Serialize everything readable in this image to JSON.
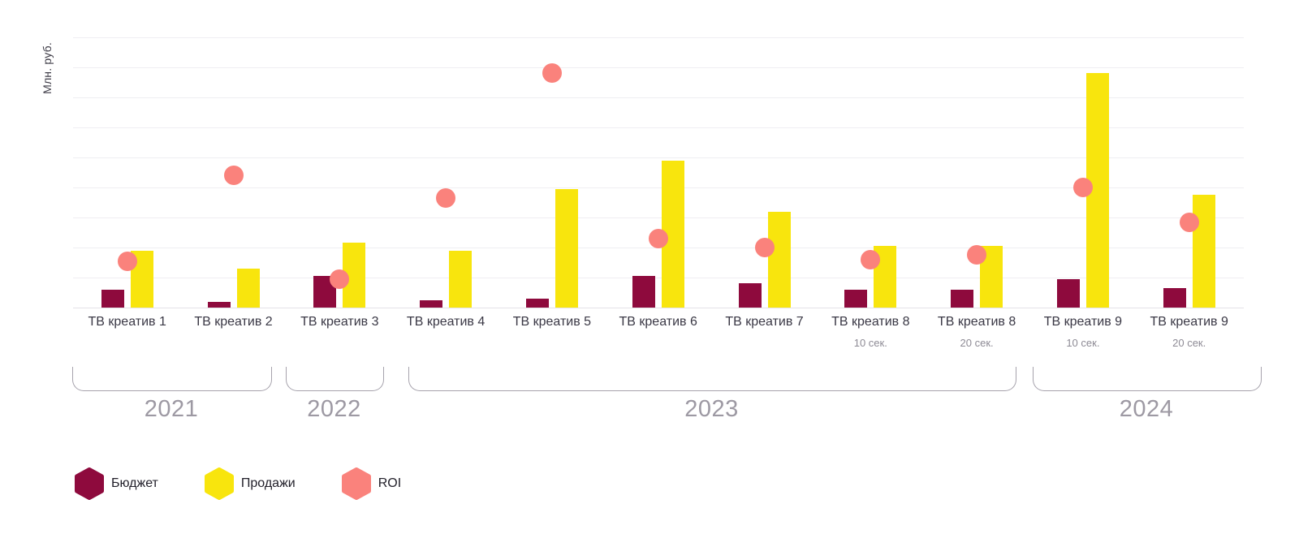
{
  "y_axis_label": "Млн. руб.",
  "colors": {
    "budget": "#8e0a3d",
    "sales": "#f8e50d",
    "roi": "#fa827c",
    "gridline": "#efeef2",
    "category_label": "#3a3845",
    "sublabel": "#8e8b95",
    "year_label": "#9d99a3",
    "legend_label": "#22202a"
  },
  "legend": [
    {
      "id": "budget",
      "label": "Бюджет",
      "marker": "hexagon-icon",
      "color": "#8e0a3d"
    },
    {
      "id": "sales",
      "label": "Продажи",
      "marker": "hexagon-icon",
      "color": "#f8e50d"
    },
    {
      "id": "roi",
      "label": "ROI",
      "marker": "hexagon-icon",
      "color": "#fa827c"
    }
  ],
  "chart_data": {
    "type": "bar",
    "subtype": "grouped bars (Бюджет, Продажи) + scatter markers (ROI)",
    "title": "",
    "ylabel": "Млн. руб.",
    "note": "y-axis shows no numeric tick labels; values are estimated in gridline units (1 unit = one horizontal gridline interval)",
    "ylim": [
      0,
      9
    ],
    "grid_interval": 1,
    "grid_on": true,
    "legend_position": "bottom-left",
    "categories": [
      "ТВ креатив 1",
      "ТВ креатив 2",
      "ТВ креатив 3",
      "ТВ креатив 4",
      "ТВ креатив 5",
      "ТВ креатив 6",
      "ТВ креатив 7",
      "ТВ креатив 8",
      "ТВ креатив 8",
      "ТВ креатив 9",
      "ТВ креатив 9"
    ],
    "groups": [
      {
        "label": "ТВ креатив 1",
        "sublabel": "",
        "year": "2021",
        "budget": 0.6,
        "sales": 1.9,
        "roi": 1.55
      },
      {
        "label": "ТВ креатив 2",
        "sublabel": "",
        "year": "2021",
        "budget": 0.2,
        "sales": 1.3,
        "roi": 4.4
      },
      {
        "label": "ТВ креатив 3",
        "sublabel": "",
        "year": "2022",
        "budget": 1.05,
        "sales": 2.15,
        "roi": 0.95
      },
      {
        "label": "ТВ креатив 4",
        "sublabel": "",
        "year": "2023",
        "budget": 0.25,
        "sales": 1.9,
        "roi": 3.65
      },
      {
        "label": "ТВ креатив 5",
        "sublabel": "",
        "year": "2023",
        "budget": 0.3,
        "sales": 3.95,
        "roi": 7.8
      },
      {
        "label": "ТВ креатив 6",
        "sublabel": "",
        "year": "2023",
        "budget": 1.05,
        "sales": 4.9,
        "roi": 2.3
      },
      {
        "label": "ТВ креатив 7",
        "sublabel": "",
        "year": "2023",
        "budget": 0.8,
        "sales": 3.2,
        "roi": 2.0
      },
      {
        "label": "ТВ креатив 8",
        "sublabel": "10 сек.",
        "year": "2023",
        "budget": 0.6,
        "sales": 2.05,
        "roi": 1.6
      },
      {
        "label": "ТВ креатив 8",
        "sublabel": "20 сек.",
        "year": "2023",
        "budget": 0.6,
        "sales": 2.05,
        "roi": 1.75
      },
      {
        "label": "ТВ креатив 9",
        "sublabel": "10 сек.",
        "year": "2024",
        "budget": 0.95,
        "sales": 7.8,
        "roi": 4.0
      },
      {
        "label": "ТВ креатив 9",
        "sublabel": "20 сек.",
        "year": "2024",
        "budget": 0.65,
        "sales": 3.75,
        "roi": 2.85
      }
    ],
    "year_spans": [
      {
        "label": "2021",
        "first_group": 0,
        "last_group": 1
      },
      {
        "label": "2022",
        "first_group": 2,
        "last_group": 2
      },
      {
        "label": "2023",
        "first_group": 3,
        "last_group": 8
      },
      {
        "label": "2024",
        "first_group": 9,
        "last_group": 10
      }
    ]
  }
}
